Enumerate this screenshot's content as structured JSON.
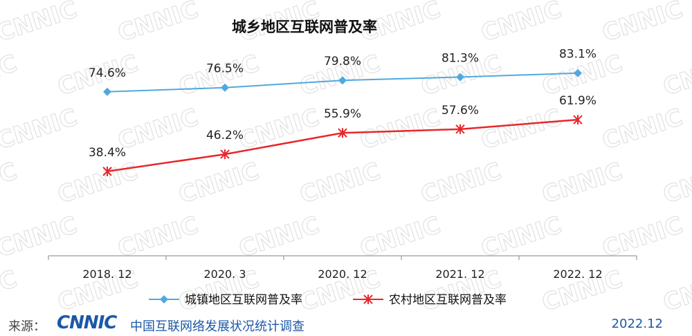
{
  "chart_data": {
    "type": "line",
    "title": "城乡地区互联网普及率",
    "categories": [
      "2018. 12",
      "2020. 3",
      "2020. 12",
      "2021. 12",
      "2022. 12"
    ],
    "series": [
      {
        "name": "城镇地区互联网普及率",
        "values": [
          74.6,
          76.5,
          79.8,
          81.3,
          83.1
        ],
        "labels": [
          "74.6%",
          "76.5%",
          "79.8%",
          "81.3%",
          "83.1%"
        ],
        "color": "#4fa8e0",
        "marker": "diamond"
      },
      {
        "name": "农村地区互联网普及率",
        "values": [
          38.4,
          46.2,
          55.9,
          57.6,
          61.9
        ],
        "labels": [
          "38.4%",
          "46.2%",
          "55.9%",
          "57.6%",
          "61.9%"
        ],
        "color": "#e8262a",
        "marker": "star"
      }
    ],
    "ylim": [
      0,
      100
    ],
    "grid": false,
    "legend": "bottom"
  },
  "watermark": "CNNIC",
  "footer": {
    "source_label": "来源：",
    "logo": "CNNIC",
    "report": "中国互联网络发展状况统计调查",
    "date": "2022.12"
  }
}
